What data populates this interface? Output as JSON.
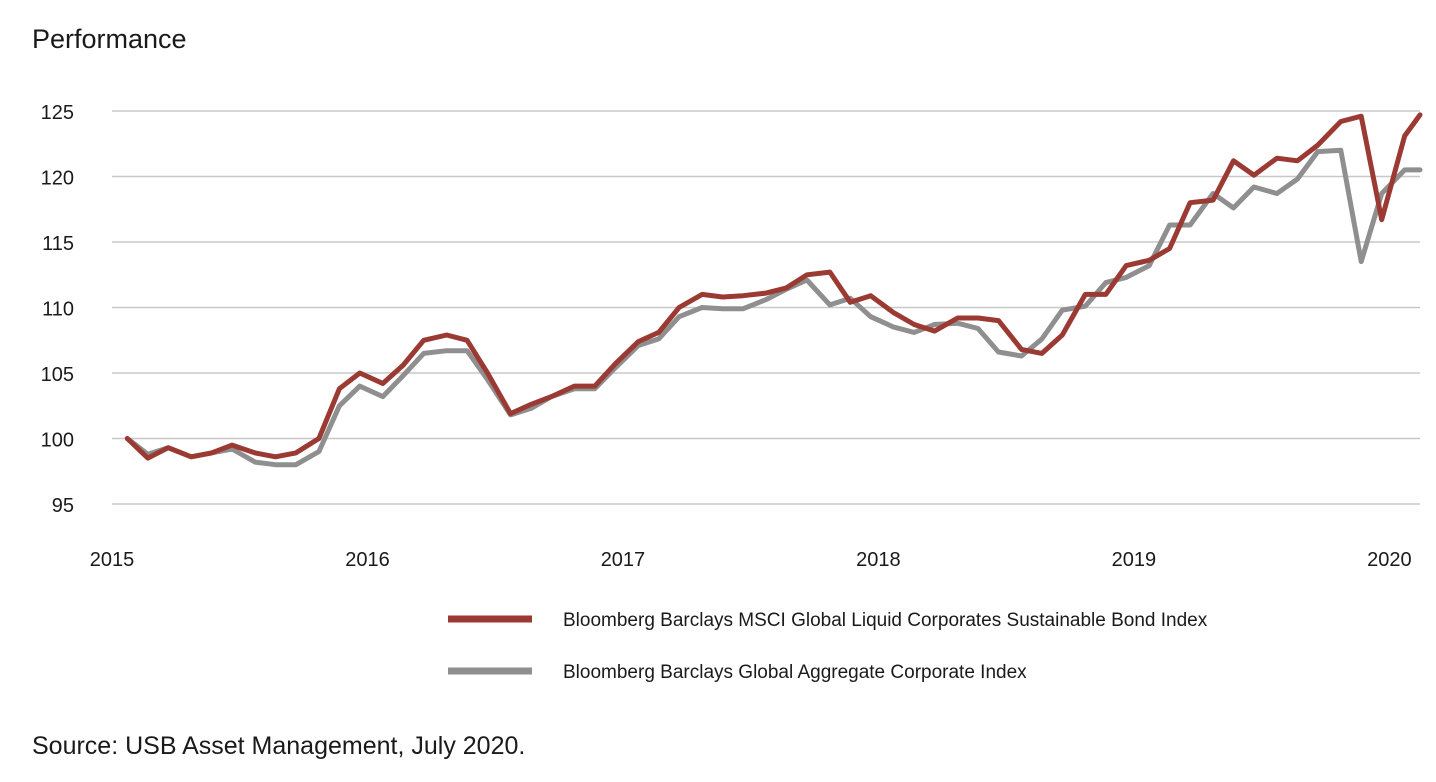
{
  "chart_data": {
    "type": "line",
    "title": "Performance",
    "xlabel": "",
    "ylabel": "",
    "ylim": [
      95,
      125
    ],
    "yticks": [
      95,
      100,
      105,
      110,
      115,
      120,
      125
    ],
    "xlim": [
      2015,
      2020.12
    ],
    "xticks": [
      2015,
      2016,
      2017,
      2018,
      2019,
      2020
    ],
    "xtick_labels": [
      "2015",
      "2016",
      "2017",
      "2018",
      "2019",
      "2020"
    ],
    "grid": true,
    "legend_position": "bottom",
    "x": [
      2015.06,
      2015.14,
      2015.22,
      2015.31,
      2015.39,
      2015.47,
      2015.56,
      2015.64,
      2015.72,
      2015.81,
      2015.89,
      2015.97,
      2016.06,
      2016.14,
      2016.22,
      2016.31,
      2016.39,
      2016.47,
      2016.56,
      2016.64,
      2016.72,
      2016.81,
      2016.89,
      2016.97,
      2017.06,
      2017.14,
      2017.22,
      2017.31,
      2017.39,
      2017.47,
      2017.56,
      2017.64,
      2017.72,
      2017.81,
      2017.89,
      2017.97,
      2018.06,
      2018.14,
      2018.22,
      2018.31,
      2018.39,
      2018.47,
      2018.56,
      2018.64,
      2018.72,
      2018.81,
      2018.89,
      2018.97,
      2019.06,
      2019.14,
      2019.22,
      2019.31,
      2019.39,
      2019.47,
      2019.56,
      2019.64,
      2019.72,
      2019.81,
      2019.89,
      2019.97,
      2020.06,
      2020.12
    ],
    "series": [
      {
        "name": "Bloomberg Barclays MSCI Global Liquid Corporates Sustainable Bond Index",
        "color": "#9b3a33",
        "values": [
          100.0,
          98.5,
          99.3,
          98.6,
          98.9,
          99.5,
          98.9,
          98.6,
          98.9,
          100.0,
          103.8,
          105.0,
          104.2,
          105.6,
          107.5,
          107.9,
          107.5,
          105.0,
          101.9,
          102.6,
          103.2,
          104.0,
          104.0,
          105.7,
          107.4,
          108.1,
          110.0,
          111.0,
          110.8,
          110.9,
          111.1,
          111.5,
          112.5,
          112.7,
          110.4,
          110.9,
          109.6,
          108.7,
          108.2,
          109.2,
          109.2,
          109.0,
          106.8,
          106.5,
          107.9,
          111.0,
          111.0,
          113.2,
          113.6,
          114.5,
          118.0,
          118.2,
          121.2,
          120.1,
          121.4,
          121.2,
          122.4,
          124.2,
          124.6,
          116.7,
          123.1,
          124.7
        ]
      },
      {
        "name": "Bloomberg Barclays Global Aggregate Corporate Index",
        "color": "#8f8f8f",
        "values": [
          100.0,
          98.8,
          99.3,
          98.6,
          98.9,
          99.2,
          98.2,
          98.0,
          98.0,
          99.0,
          102.5,
          104.0,
          103.2,
          104.8,
          106.5,
          106.7,
          106.7,
          104.5,
          101.8,
          102.3,
          103.2,
          103.8,
          103.8,
          105.4,
          107.1,
          107.6,
          109.3,
          110.0,
          109.9,
          109.9,
          110.6,
          111.4,
          112.1,
          110.2,
          110.7,
          109.3,
          108.5,
          108.1,
          108.7,
          108.8,
          108.4,
          106.6,
          106.3,
          107.6,
          109.8,
          110.1,
          111.9,
          112.3,
          113.2,
          116.3,
          116.3,
          118.7,
          117.6,
          119.2,
          118.7,
          119.8,
          121.9,
          122.0,
          113.5,
          118.7,
          120.5,
          120.5
        ]
      }
    ]
  },
  "footer": {
    "source": "Source: USB Asset Management, July 2020."
  }
}
